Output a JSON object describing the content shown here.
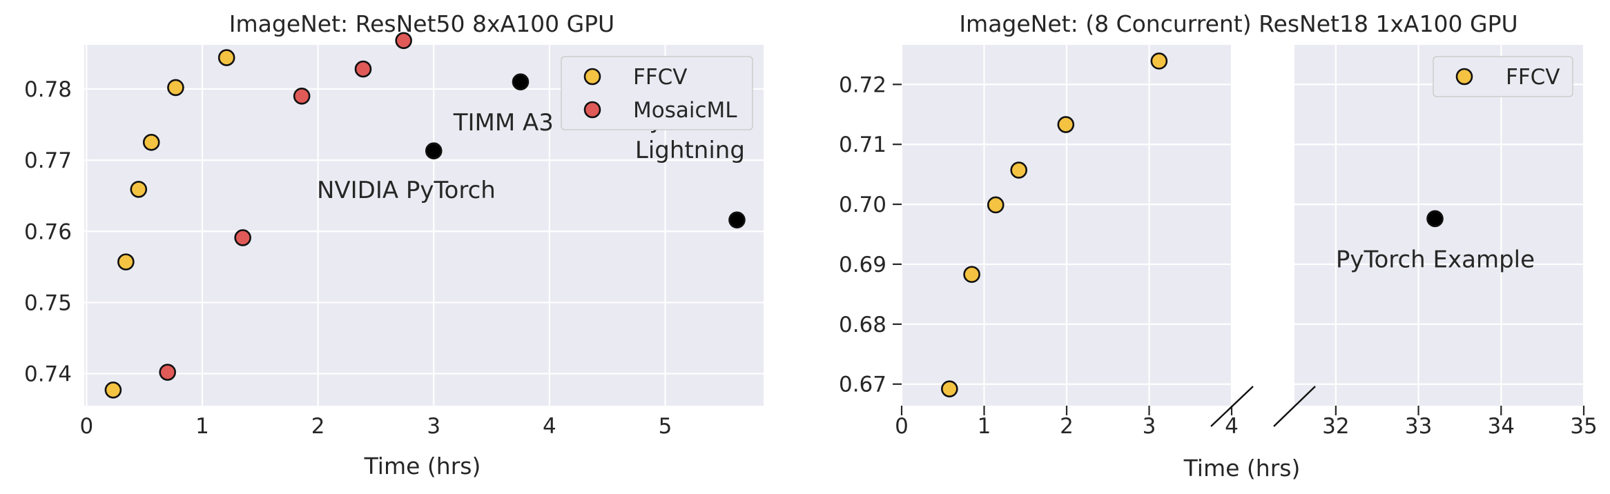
{
  "chart_data": [
    {
      "type": "scatter",
      "title": "ImageNet: ResNet50 8xA100 GPU",
      "xlabel": "Time (hrs)",
      "ylabel": "",
      "xlim": [
        -0.02,
        5.85
      ],
      "ylim": [
        0.7355,
        0.7862
      ],
      "xticks": [
        "0",
        "1",
        "2",
        "3",
        "4",
        "5"
      ],
      "yticks": [
        "0.74",
        "0.75",
        "0.76",
        "0.77",
        "0.78"
      ],
      "grid": true,
      "legend": "top-right",
      "series": [
        {
          "name": "FFCV",
          "color": "#f5c342",
          "x": [
            0.23,
            0.34,
            0.45,
            0.56,
            0.77,
            1.21
          ],
          "y": [
            0.7377,
            0.7557,
            0.7659,
            0.7725,
            0.7802,
            0.7844
          ]
        },
        {
          "name": "MosaicML",
          "color": "#e05a57",
          "x": [
            0.7,
            1.35,
            1.86,
            2.39,
            2.74
          ],
          "y": [
            0.7402,
            0.7591,
            0.779,
            0.7828,
            0.7868
          ]
        },
        {
          "name": "",
          "color": "#000000",
          "x": [
            3.0,
            3.75,
            5.62
          ],
          "y": [
            0.7713,
            0.781,
            0.7616
          ]
        }
      ],
      "annotations": [
        {
          "text": "TIMM A3",
          "x": 3.17,
          "y": 0.7742
        },
        {
          "text": "NVIDIA PyTorch",
          "x": 1.99,
          "y": 0.7647
        },
        {
          "text": "PyTorch",
          "x": 4.74,
          "y": 0.7745
        },
        {
          "text": "Lightning",
          "x": 4.74,
          "y": 0.7703
        }
      ]
    },
    {
      "type": "scatter",
      "title": "ImageNet: (8 Concurrent) ResNet18 1xA100 GPU",
      "xlabel": "Time (hrs)",
      "ylabel": "",
      "broken_x_axis": true,
      "segments": [
        {
          "xlim": [
            0,
            4
          ],
          "xticks": [
            "0",
            "1",
            "2",
            "3",
            "4"
          ]
        },
        {
          "xlim": [
            31.5,
            35
          ],
          "xticks": [
            "32",
            "33",
            "34",
            "35"
          ]
        }
      ],
      "ylim": [
        0.6664,
        0.7266
      ],
      "yticks": [
        "0.67",
        "0.68",
        "0.69",
        "0.70",
        "0.71",
        "0.72"
      ],
      "grid": true,
      "legend": "top-right",
      "series": [
        {
          "name": "FFCV",
          "color": "#f5c342",
          "x": [
            0.58,
            0.85,
            1.14,
            1.42,
            1.99,
            3.12
          ],
          "y": [
            0.6692,
            0.6883,
            0.6999,
            0.7057,
            0.7133,
            0.7239
          ]
        },
        {
          "name": "",
          "color": "#000000",
          "x": [
            33.2
          ],
          "y": [
            0.6976
          ]
        }
      ],
      "annotations": [
        {
          "text": "PyTorch Example",
          "x": 32.0,
          "y": 0.6895
        }
      ]
    }
  ]
}
